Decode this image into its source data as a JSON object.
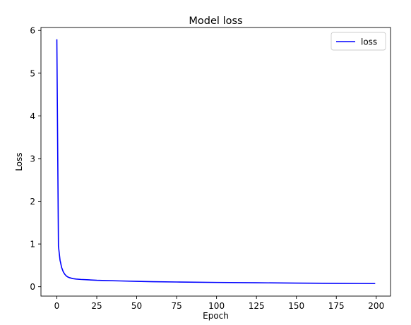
{
  "chart_data": {
    "type": "line",
    "title": "Model loss",
    "xlabel": "Epoch",
    "ylabel": "Loss",
    "xlim": [
      -9.95,
      208.95
    ],
    "ylim": [
      -0.22,
      6.07
    ],
    "xticks": [
      0,
      25,
      50,
      75,
      100,
      125,
      150,
      175,
      200
    ],
    "yticks": [
      0,
      1,
      2,
      3,
      4,
      5,
      6
    ],
    "grid": false,
    "legend_position": "top-right",
    "series": [
      {
        "name": "loss",
        "color": "#0000ff",
        "x": [
          0,
          1,
          2,
          3,
          4,
          5,
          6,
          7,
          8,
          9,
          10,
          12,
          15,
          20,
          25,
          30,
          40,
          50,
          60,
          75,
          100,
          125,
          150,
          175,
          199
        ],
        "y": [
          5.78,
          0.95,
          0.62,
          0.45,
          0.35,
          0.29,
          0.25,
          0.225,
          0.21,
          0.2,
          0.19,
          0.18,
          0.17,
          0.16,
          0.15,
          0.145,
          0.135,
          0.125,
          0.118,
          0.11,
          0.1,
          0.092,
          0.085,
          0.078,
          0.073
        ]
      }
    ]
  }
}
